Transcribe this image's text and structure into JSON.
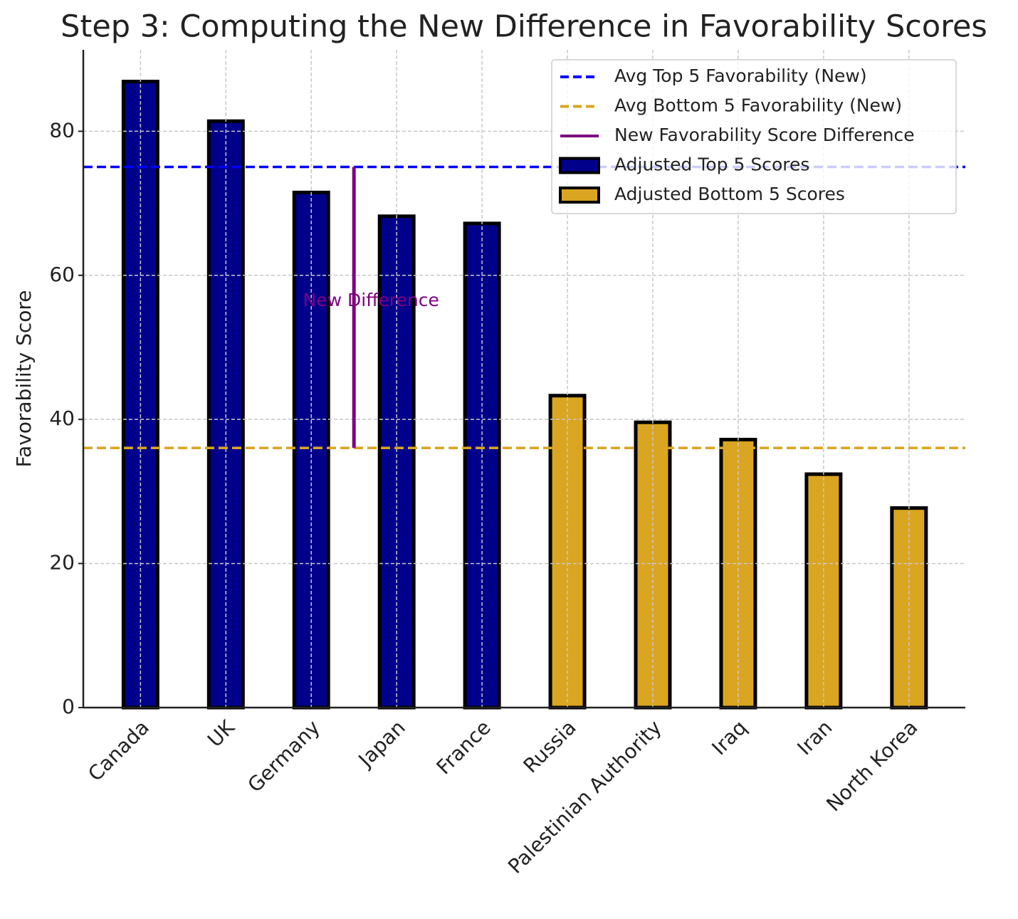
{
  "chart_data": {
    "type": "bar",
    "title": "Step 3: Computing the New Difference in Favorability Scores",
    "ylabel": "Favorability Score",
    "categories": [
      "Canada",
      "UK",
      "Germany",
      "Japan",
      "France",
      "Russia",
      "Palestinian Authority",
      "Iraq",
      "Iran",
      "North Korea"
    ],
    "series": [
      {
        "name": "Adjusted Top 5 Scores",
        "color": "#00008b",
        "values": [
          86.9,
          81.4,
          71.5,
          68.2,
          67.2,
          null,
          null,
          null,
          null,
          null
        ]
      },
      {
        "name": "Adjusted Bottom 5 Scores",
        "color": "#daa520",
        "values": [
          null,
          null,
          null,
          null,
          null,
          43.3,
          39.6,
          37.2,
          32.4,
          27.7
        ]
      }
    ],
    "lines": [
      {
        "name": "Avg Top 5 Favorability (New)",
        "color": "#0000ff",
        "value": 75.04
      },
      {
        "name": "Avg Bottom 5 Favorability (New)",
        "color": "#daa520",
        "value": 36.04
      }
    ],
    "difference": {
      "name": "New Favorability Score Difference",
      "color": "#800080",
      "x": 2.5
    },
    "annotation": {
      "text": "New Difference",
      "x": 2.7,
      "y": 56.4,
      "color": "#800080"
    },
    "xlim": [
      -0.67,
      9.66
    ],
    "ylim": [
      0,
      91.3
    ],
    "yticks": [
      0,
      20,
      40,
      60,
      80
    ],
    "grid": true,
    "legend": "upper right"
  }
}
